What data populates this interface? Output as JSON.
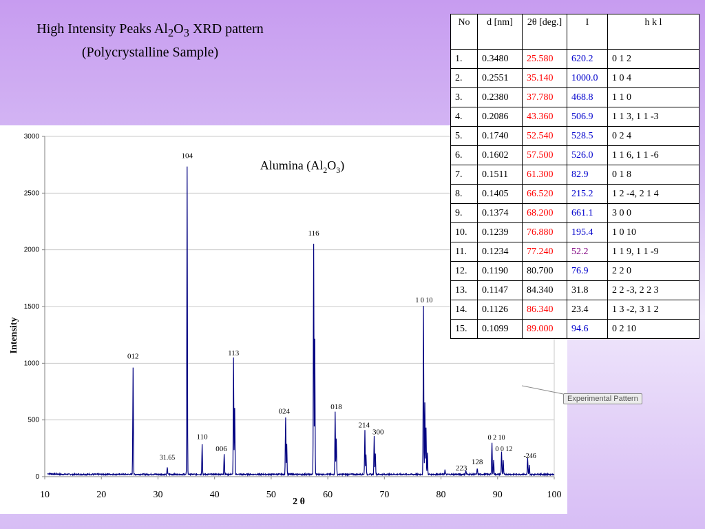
{
  "slide": {
    "title_line1_prefix": "High Intensity Peaks Al",
    "title_sub1": "2",
    "title_mid": "O",
    "title_sub2": "3",
    "title_line1_suffix": " XRD pattern",
    "title_line2": "(Polycrystalline Sample)"
  },
  "callout": {
    "text": "Experimental Pattern"
  },
  "table": {
    "headers": [
      "No",
      "d [nm]",
      "2θ [deg.]",
      "I",
      "h k l"
    ],
    "rows": [
      {
        "no": "1.",
        "d": "0.3480",
        "two_theta": "25.580",
        "tt_color": "red",
        "i": "620.2",
        "i_color": "blue",
        "hkl": "0 1 2"
      },
      {
        "no": "2.",
        "d": "0.2551",
        "two_theta": "35.140",
        "tt_color": "red",
        "i": "1000.0",
        "i_color": "blue",
        "hkl": "1 0 4"
      },
      {
        "no": "3.",
        "d": "0.2380",
        "two_theta": "37.780",
        "tt_color": "red",
        "i": "468.8",
        "i_color": "blue",
        "hkl": "1 1 0"
      },
      {
        "no": "4.",
        "d": "0.2086",
        "two_theta": "43.360",
        "tt_color": "red",
        "i": "506.9",
        "i_color": "blue",
        "hkl": "1 1 3, 1 1 -3"
      },
      {
        "no": "5.",
        "d": "0.1740",
        "two_theta": "52.540",
        "tt_color": "red",
        "i": "528.5",
        "i_color": "blue",
        "hkl": "0 2 4"
      },
      {
        "no": "6.",
        "d": "0.1602",
        "two_theta": "57.500",
        "tt_color": "red",
        "i": "526.0",
        "i_color": "blue",
        "hkl": "1 1 6, 1 1 -6"
      },
      {
        "no": "7.",
        "d": "0.1511",
        "two_theta": "61.300",
        "tt_color": "red",
        "i": "82.9",
        "i_color": "blue",
        "hkl": "0 1 8"
      },
      {
        "no": "8.",
        "d": "0.1405",
        "two_theta": "66.520",
        "tt_color": "red",
        "i": "215.2",
        "i_color": "blue",
        "hkl": "1 2 -4, 2 1 4"
      },
      {
        "no": "9.",
        "d": "0.1374",
        "two_theta": "68.200",
        "tt_color": "red",
        "i": "661.1",
        "i_color": "blue",
        "hkl": "3 0 0"
      },
      {
        "no": "10.",
        "d": "0.1239",
        "two_theta": "76.880",
        "tt_color": "red",
        "i": "195.4",
        "i_color": "blue",
        "hkl": "1 0 10"
      },
      {
        "no": "11.",
        "d": "0.1234",
        "two_theta": "77.240",
        "tt_color": "red",
        "i": "52.2",
        "i_color": "purple",
        "hkl": "1 1 9, 1 1 -9"
      },
      {
        "no": "12.",
        "d": "0.1190",
        "two_theta": "80.700",
        "tt_color": "black",
        "i": "76.9",
        "i_color": "blue",
        "hkl": "2 2 0"
      },
      {
        "no": "13.",
        "d": "0.1147",
        "two_theta": "84.340",
        "tt_color": "black",
        "i": "31.8",
        "i_color": "black",
        "hkl": "2 2 -3, 2 2 3"
      },
      {
        "no": "14.",
        "d": "0.1126",
        "two_theta": "86.340",
        "tt_color": "red",
        "i": "23.4",
        "i_color": "black",
        "hkl": "1 3 -2, 3 1 2"
      },
      {
        "no": "15.",
        "d": "0.1099",
        "two_theta": "89.000",
        "tt_color": "red",
        "i": "94.6",
        "i_color": "blue",
        "hkl": "0 2 10"
      }
    ]
  },
  "chart_data": {
    "type": "line",
    "title_prefix": "Alumina (Al",
    "title_sub1": "2",
    "title_mid": "O",
    "title_sub2": "3",
    "title_suffix": ")",
    "xlabel": "2 θ",
    "ylabel": "Intensity",
    "xlim": [
      10,
      100
    ],
    "ylim": [
      0,
      3000
    ],
    "xticks": [
      10,
      20,
      30,
      40,
      50,
      60,
      70,
      80,
      90,
      100
    ],
    "yticks": [
      0,
      500,
      1000,
      1500,
      2000,
      2500,
      3000
    ],
    "line_color": "#000080",
    "baseline": 20,
    "peaks": [
      {
        "x": 25.6,
        "y": 945
      },
      {
        "x": 31.65,
        "y": 65
      },
      {
        "x": 35.15,
        "y": 2710
      },
      {
        "x": 37.8,
        "y": 270
      },
      {
        "x": 41.7,
        "y": 180
      },
      {
        "x": 43.35,
        "y": 1025
      },
      {
        "x": 43.55,
        "y": 580
      },
      {
        "x": 52.55,
        "y": 505
      },
      {
        "x": 52.75,
        "y": 270
      },
      {
        "x": 57.5,
        "y": 2030
      },
      {
        "x": 57.7,
        "y": 1200
      },
      {
        "x": 61.3,
        "y": 550
      },
      {
        "x": 61.5,
        "y": 320
      },
      {
        "x": 66.55,
        "y": 390
      },
      {
        "x": 66.75,
        "y": 180
      },
      {
        "x": 68.2,
        "y": 345
      },
      {
        "x": 68.4,
        "y": 180
      },
      {
        "x": 76.9,
        "y": 1485
      },
      {
        "x": 77.15,
        "y": 640
      },
      {
        "x": 77.35,
        "y": 410
      },
      {
        "x": 77.6,
        "y": 195
      },
      {
        "x": 80.7,
        "y": 40
      },
      {
        "x": 84.4,
        "y": 35
      },
      {
        "x": 86.4,
        "y": 55
      },
      {
        "x": 89.0,
        "y": 275
      },
      {
        "x": 89.3,
        "y": 130
      },
      {
        "x": 90.7,
        "y": 205
      },
      {
        "x": 91.0,
        "y": 120
      },
      {
        "x": 95.3,
        "y": 140
      },
      {
        "x": 95.6,
        "y": 80
      }
    ],
    "annotations": [
      {
        "label": "012",
        "x": 25.6,
        "y": 1040
      },
      {
        "label": "31.65",
        "x": 31.65,
        "y": 150
      },
      {
        "label": "104",
        "x": 35.15,
        "y": 2810
      },
      {
        "label": "110",
        "x": 37.8,
        "y": 330
      },
      {
        "label": "006",
        "x": 41.2,
        "y": 225
      },
      {
        "label": "113",
        "x": 43.35,
        "y": 1070
      },
      {
        "label": "024",
        "x": 52.3,
        "y": 555
      },
      {
        "label": "116",
        "x": 57.5,
        "y": 2125
      },
      {
        "label": "018",
        "x": 61.5,
        "y": 595
      },
      {
        "label": "214",
        "x": 66.4,
        "y": 435
      },
      {
        "label": "300",
        "x": 68.9,
        "y": 375
      },
      {
        "label": "1 0 10",
        "x": 77.0,
        "y": 1535
      },
      {
        "label": "223",
        "x": 83.6,
        "y": 55
      },
      {
        "label": "128",
        "x": 86.4,
        "y": 110
      },
      {
        "label": "0 2 10",
        "x": 89.8,
        "y": 325
      },
      {
        "label": "0 0 12",
        "x": 91.1,
        "y": 225
      },
      {
        "label": "-246",
        "x": 95.7,
        "y": 165
      }
    ]
  }
}
